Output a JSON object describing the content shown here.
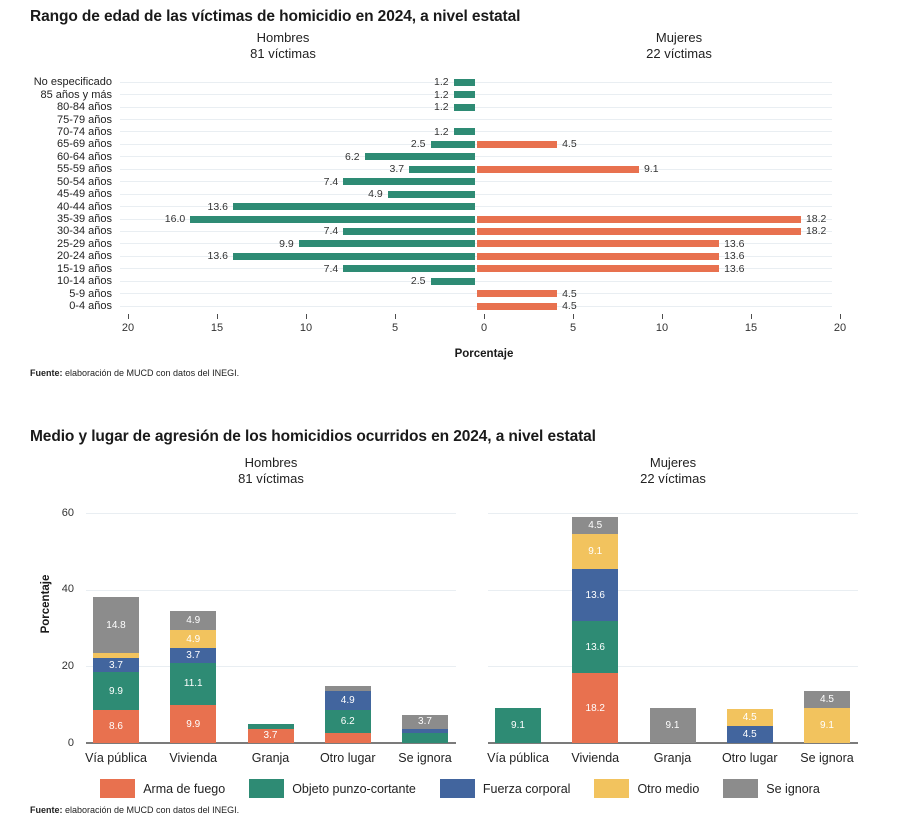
{
  "chart_data": [
    {
      "type": "bar",
      "variant": "population_pyramid",
      "orientation": "horizontal",
      "title": "Rango de edad de las víctimas de homicidio en 2024, a nivel estatal",
      "facets": [
        {
          "label": "Hombres",
          "sublabel": "81 víctimas"
        },
        {
          "label": "Mujeres",
          "sublabel": "22 víctimas"
        }
      ],
      "categories": [
        "No especificado",
        "85 años y más",
        "80-84 años",
        "75-79 años",
        "70-74 años",
        "65-69 años",
        "60-64 años",
        "55-59 años",
        "50-54 años",
        "45-49 años",
        "40-44 años",
        "35-39 años",
        "30-34 años",
        "25-29 años",
        "20-24 años",
        "15-19 años",
        "10-14 años",
        "5-9 años",
        "0-4 años"
      ],
      "series": [
        {
          "name": "Hombres",
          "side": "left",
          "color": "#2e8b74",
          "values": [
            1.2,
            1.2,
            1.2,
            0,
            1.2,
            2.5,
            6.2,
            3.7,
            7.4,
            4.9,
            13.6,
            16.0,
            7.4,
            9.9,
            13.6,
            7.4,
            2.5,
            0,
            0
          ],
          "labels": [
            "1.2",
            "1.2",
            "1.2",
            "",
            "1.2",
            "2.5",
            "6.2",
            "3.7",
            "7.4",
            "4.9",
            "13.6",
            "16.0",
            "7.4",
            "9.9",
            "13.6",
            "7.4",
            "2.5",
            "",
            ""
          ]
        },
        {
          "name": "Mujeres",
          "side": "right",
          "color": "#e8714f",
          "values": [
            0,
            0,
            0,
            0,
            0,
            4.5,
            0,
            9.1,
            0,
            0,
            0,
            18.2,
            18.2,
            13.6,
            13.6,
            13.6,
            0,
            4.5,
            4.5
          ],
          "labels": [
            "",
            "",
            "",
            "",
            "",
            "4.5",
            "",
            "9.1",
            "",
            "",
            "",
            "18.2",
            "18.2",
            "13.6",
            "13.6",
            "13.6",
            "",
            "4.5",
            "4.5"
          ]
        }
      ],
      "xlabel": "Porcentaje",
      "x_ticks": [
        20,
        15,
        10,
        5,
        0,
        5,
        10,
        15,
        20
      ],
      "xlim_each_side": [
        0,
        20
      ],
      "grid": "horizontal-row-lines",
      "source_label": "Fuente:",
      "source_text": " elaboración de MUCD con datos del INEGI."
    },
    {
      "type": "bar",
      "variant": "stacked_columns",
      "title": "Medio y lugar de agresión de los homicidios ocurridos en 2024, a nivel estatal",
      "categories": [
        "Vía pública",
        "Vivienda",
        "Granja",
        "Otro lugar",
        "Se ignora"
      ],
      "ylabel": "Porcentaje",
      "y_ticks": [
        0,
        20,
        40,
        60
      ],
      "ylim": [
        0,
        60
      ],
      "grid": "horizontal",
      "legend_position": "bottom",
      "legend": [
        {
          "label": "Arma de fuego",
          "color": "#e8714f"
        },
        {
          "label": "Objeto punzo-cortante",
          "color": "#2e8b74"
        },
        {
          "label": "Fuerza corporal",
          "color": "#42659e"
        },
        {
          "label": "Otro medio",
          "color": "#f2c35e"
        },
        {
          "label": "Se ignora",
          "color": "#8c8c8c"
        }
      ],
      "facets": [
        {
          "label": "Hombres",
          "sublabel": "81 víctimas",
          "series": [
            {
              "name": "Arma de fuego",
              "values": [
                8.6,
                9.9,
                3.7,
                2.5,
                0
              ],
              "labels": [
                "8.6",
                "9.9",
                "3.7",
                "",
                ""
              ]
            },
            {
              "name": "Objeto punzo-cortante",
              "values": [
                9.9,
                11.1,
                1.2,
                6.2,
                2.5
              ],
              "labels": [
                "9.9",
                "11.1",
                "",
                "6.2",
                ""
              ]
            },
            {
              "name": "Fuerza corporal",
              "values": [
                3.7,
                3.7,
                0,
                4.9,
                1.2
              ],
              "labels": [
                "3.7",
                "3.7",
                "",
                "4.9",
                ""
              ]
            },
            {
              "name": "Otro medio",
              "values": [
                1.2,
                4.9,
                0,
                0,
                0
              ],
              "labels": [
                "",
                "4.9",
                "",
                "",
                ""
              ]
            },
            {
              "name": "Se ignora",
              "values": [
                14.8,
                4.9,
                0,
                1.2,
                3.7
              ],
              "labels": [
                "14.8",
                "4.9",
                "",
                "",
                "3.7"
              ]
            }
          ]
        },
        {
          "label": "Mujeres",
          "sublabel": "22 víctimas",
          "series": [
            {
              "name": "Arma de fuego",
              "values": [
                0,
                18.2,
                0,
                0,
                0
              ],
              "labels": [
                "",
                "18.2",
                "",
                "",
                ""
              ]
            },
            {
              "name": "Objeto punzo-cortante",
              "values": [
                9.1,
                13.6,
                0,
                0,
                0
              ],
              "labels": [
                "9.1",
                "13.6",
                "",
                "",
                ""
              ]
            },
            {
              "name": "Fuerza corporal",
              "values": [
                0,
                13.6,
                0,
                4.5,
                0
              ],
              "labels": [
                "",
                "13.6",
                "",
                "4.5",
                ""
              ]
            },
            {
              "name": "Otro medio",
              "values": [
                0,
                9.1,
                0,
                4.5,
                9.1
              ],
              "labels": [
                "",
                "9.1",
                "",
                "4.5",
                "9.1"
              ]
            },
            {
              "name": "Se ignora",
              "values": [
                0,
                4.5,
                9.1,
                0,
                4.5
              ],
              "labels": [
                "",
                "4.5",
                "9.1",
                "",
                "4.5"
              ]
            }
          ]
        }
      ],
      "source_label": "Fuente:",
      "source_text": " elaboración de MUCD con datos del INEGI."
    }
  ],
  "style_colors": {
    "arma_de_fuego": "#e8714f",
    "objeto_punzo_cortante": "#2e8b74",
    "fuerza_corporal": "#42659e",
    "otro_medio": "#f2c35e",
    "se_ignora": "#8c8c8c",
    "gridline": "#e9eef2",
    "axis_line": "#7b7b7b"
  }
}
